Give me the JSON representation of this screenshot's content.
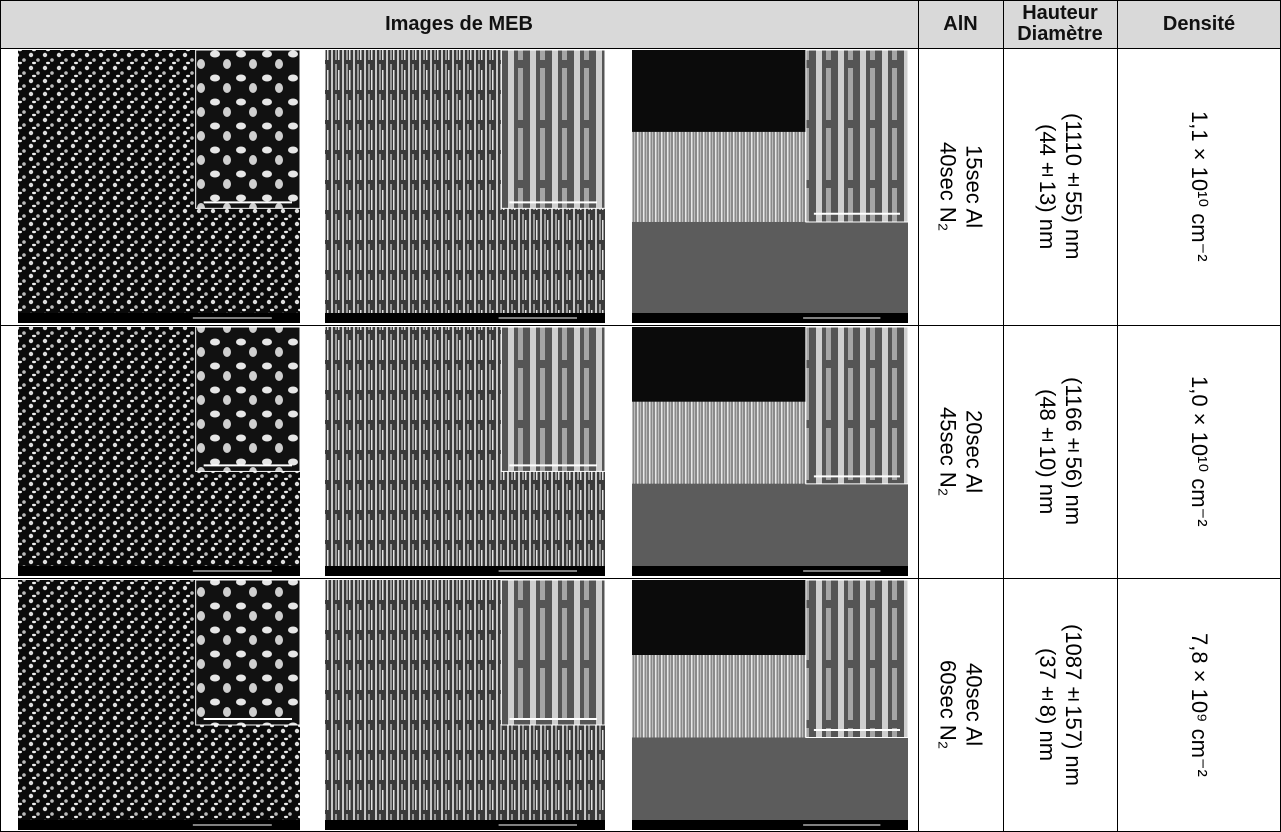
{
  "header": {
    "images": "Images de MEB",
    "aln": "AlN",
    "height": "Hauteur",
    "diameter": "Diamètre",
    "density": "Densité"
  },
  "rows": [
    {
      "aln": [
        "15sec Al",
        "40sec N₂"
      ],
      "dims": [
        "(1110±55) nm",
        "(44±13) nm"
      ],
      "density": "1,1×10¹⁰ cm⁻²"
    },
    {
      "aln": [
        "20sec Al",
        "45sec N₂"
      ],
      "dims": [
        "(1166±56) nm",
        "(48±10) nm"
      ],
      "density": "1,0×10¹⁰ cm⁻²"
    },
    {
      "aln": [
        "40sec Al",
        "60sec N₂"
      ],
      "dims": [
        "(1087±157) nm",
        "(37±8) nm"
      ],
      "density": "7,8×10⁹ cm⁻²"
    }
  ]
}
